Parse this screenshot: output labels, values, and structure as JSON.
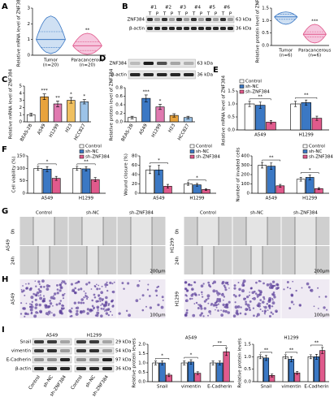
{
  "panel_labels": [
    "A",
    "B",
    "C",
    "D",
    "E",
    "F",
    "G",
    "H",
    "I"
  ],
  "blots": {
    "B": {
      "bands": [
        "ZNF384",
        "β-actin"
      ],
      "kda": [
        "63 kDa",
        "36 kDa"
      ],
      "samples": [
        "#1",
        "#2",
        "#3",
        "#4",
        "#5",
        "#6"
      ],
      "lanes": [
        "T",
        "P",
        "T",
        "P",
        "T",
        "P",
        "T",
        "P",
        "T",
        "P",
        "T",
        "P"
      ]
    },
    "D": {
      "bands": [
        "ZNF384",
        "β-actin"
      ],
      "kda": [
        "63 kDa",
        "36 kDa"
      ]
    },
    "I": {
      "groups": [
        "A549",
        "H1299"
      ],
      "bands": [
        "Snail",
        "vimentin",
        "E-Cadherin",
        "β-actin"
      ],
      "kda": [
        "29 kDa",
        "54 kDa",
        "97 kDa",
        "36 kDa"
      ],
      "lanes": [
        "Control",
        "sh-NC",
        "sh-ZNF384",
        "Control",
        "sh-NC",
        "sh-ZNF384"
      ]
    }
  },
  "images": {
    "columns": [
      "Control",
      "sh-NC",
      "sh-ZNF384"
    ],
    "cell_lines": [
      "A549",
      "H1299"
    ],
    "times": [
      "0h",
      "24h"
    ],
    "scale_bars": [
      "200μm",
      "100μm"
    ]
  },
  "chart_data": [
    {
      "type": "violin",
      "ylabel": "Relative mRNA level of ZNF384",
      "categories": [
        "Tumor",
        "Paracancerous"
      ],
      "n_labels": [
        "(n=20)",
        "(n=20)"
      ],
      "stats": [
        {
          "min": 0.1,
          "q1": 0.5,
          "median": 1.0,
          "q3": 1.5,
          "max": 2.5
        },
        {
          "min": 0.05,
          "q1": 0.3,
          "median": 0.6,
          "q3": 0.85,
          "max": 1.4
        }
      ],
      "colors": [
        "#3b78c4",
        "#e05a8c"
      ],
      "fill_colors": [
        "#cfe0f3",
        "#f6c7de"
      ],
      "annotations": [
        null,
        "**"
      ],
      "ylim": [
        0,
        3
      ],
      "yticks": [
        0,
        1,
        2,
        3
      ]
    },
    {
      "type": "violin",
      "ylabel": "Relative protein level of ZNF384",
      "categories": [
        "Tumor",
        "Paracancerous"
      ],
      "n_labels": [
        "(n=6)",
        "(n=6)"
      ],
      "stats": [
        {
          "min": 0.85,
          "q1": 1.05,
          "median": 1.15,
          "q3": 1.25,
          "max": 1.35
        },
        {
          "min": 0.1,
          "q1": 0.35,
          "median": 0.45,
          "q3": 0.55,
          "max": 0.85
        }
      ],
      "colors": [
        "#3b78c4",
        "#e05a8c"
      ],
      "fill_colors": [
        "#cfe0f3",
        "#f6c7de"
      ],
      "annotations": [
        null,
        "***"
      ],
      "ylim": [
        0,
        1.5
      ],
      "yticks": [
        {
          "value": 0,
          "label": "0.0"
        },
        {
          "value": 0.5,
          "label": "0.5"
        },
        {
          "value": 1,
          "label": "1.0"
        },
        {
          "value": 1.5,
          "label": "1.5"
        }
      ]
    },
    {
      "type": "bar",
      "ylabel": "Relative mRNA level of ZNF384",
      "categories": [
        "BEAS-2B",
        "A549",
        "H1299",
        "H23",
        "HCC827"
      ],
      "values": [
        1,
        3.5,
        2.5,
        3.0,
        2.8
      ],
      "errors": [
        0.2,
        0.4,
        0.4,
        0.4,
        0.3
      ],
      "colors": [
        "#ffffff",
        "#e8a33d",
        "#e07ab0",
        "#f0c060",
        "#9cc3e8"
      ],
      "annotations": [
        null,
        "***",
        "**",
        "*",
        "*"
      ],
      "ylim": [
        0,
        5
      ],
      "yticks": [
        0,
        1,
        2,
        3,
        4,
        5
      ]
    },
    {
      "type": "bar",
      "ylabel": "Relative protein level of ZNF384",
      "categories": [
        "BEAS-2B",
        "A549",
        "H1299",
        "H23",
        "HCC827"
      ],
      "values": [
        0.1,
        0.55,
        0.35,
        0.15,
        0.1
      ],
      "errors": [
        0.03,
        0.08,
        0.06,
        0.04,
        0.03
      ],
      "colors": [
        "#ffffff",
        "#3b78c4",
        "#e07ab0",
        "#e8a33d",
        "#9cc3e8"
      ],
      "annotations": [
        null,
        "***",
        "*",
        null,
        null
      ],
      "ylim": [
        0,
        0.8
      ],
      "yticks": [
        {
          "value": 0,
          "label": "0.0"
        },
        {
          "value": 0.2,
          "label": "0.2"
        },
        {
          "value": 0.4,
          "label": "0.4"
        },
        {
          "value": 0.6,
          "label": "0.6"
        },
        {
          "value": 0.8,
          "label": "0.8"
        }
      ]
    },
    {
      "type": "grouped_bar",
      "ylabel": "Relative mRNA level of ZNF384",
      "categories": [
        "A549",
        "H1299"
      ],
      "legend": "top-left",
      "series": [
        {
          "name": "Control",
          "color": "#ffffff",
          "values": [
            1,
            1
          ],
          "errors": [
            0.1,
            0.1
          ]
        },
        {
          "name": "sh-NC",
          "color": "#3b78c4",
          "values": [
            0.95,
            1.05
          ],
          "errors": [
            0.12,
            0.1
          ]
        },
        {
          "name": "sh-ZNF384",
          "color": "#e05a8c",
          "values": [
            0.3,
            0.45
          ],
          "errors": [
            0.06,
            0.08
          ]
        }
      ],
      "annotations": [
        "**",
        "**"
      ],
      "ylim": [
        0,
        1.5
      ],
      "yticks": [
        {
          "value": 0,
          "label": "0.0"
        },
        {
          "value": 0.5,
          "label": "0.5"
        },
        {
          "value": 1,
          "label": "1.0"
        },
        {
          "value": 1.5,
          "label": "1.5"
        }
      ]
    },
    {
      "type": "grouped_bar",
      "ylabel": "Cell viability (%)",
      "categories": [
        "A549",
        "H1299"
      ],
      "legend": "top-right",
      "series": [
        {
          "name": "Control",
          "color": "#ffffff",
          "values": [
            100,
            100
          ],
          "errors": [
            8,
            8
          ]
        },
        {
          "name": "sh-NC",
          "color": "#3b78c4",
          "values": [
            97,
            98
          ],
          "errors": [
            10,
            9
          ]
        },
        {
          "name": "sh-ZNF384",
          "color": "#e05a8c",
          "values": [
            60,
            55
          ],
          "errors": [
            8,
            8
          ]
        }
      ],
      "annotations": [
        "*",
        "**"
      ],
      "ylim": [
        0,
        150
      ],
      "yticks": [
        0,
        50,
        100,
        150
      ]
    },
    {
      "type": "grouped_bar",
      "ylabel": "Wound closure (%)",
      "categories": [
        "A549",
        "H1299"
      ],
      "legend": "top-right",
      "series": [
        {
          "name": "Control",
          "color": "#ffffff",
          "values": [
            50,
            20
          ],
          "errors": [
            8,
            3
          ]
        },
        {
          "name": "sh-NC",
          "color": "#3b78c4",
          "values": [
            50,
            18
          ],
          "errors": [
            10,
            3
          ]
        },
        {
          "name": "sh-ZNF384",
          "color": "#e05a8c",
          "values": [
            15,
            8
          ],
          "errors": [
            4,
            2
          ]
        }
      ],
      "annotations": [
        "*",
        "*"
      ],
      "ylim": [
        0,
        80
      ],
      "yticks": [
        0,
        20,
        40,
        60,
        80
      ]
    },
    {
      "type": "grouped_bar",
      "ylabel": "Number of invaded cells",
      "categories": [
        "A549",
        "H1299"
      ],
      "legend": "top-right",
      "series": [
        {
          "name": "Control",
          "color": "#ffffff",
          "values": [
            300,
            150
          ],
          "errors": [
            30,
            20
          ]
        },
        {
          "name": "sh-NC",
          "color": "#3b78c4",
          "values": [
            290,
            170
          ],
          "errors": [
            35,
            25
          ]
        },
        {
          "name": "sh-ZNF384",
          "color": "#e05a8c",
          "values": [
            80,
            50
          ],
          "errors": [
            15,
            10
          ]
        }
      ],
      "annotations": [
        "**",
        "*"
      ],
      "ylim": [
        0,
        400
      ],
      "yticks": [
        0,
        100,
        200,
        300,
        400
      ]
    },
    {
      "type": "grouped_bar",
      "title": "A549",
      "ylabel": "Relative protein levels",
      "categories": [
        "Snail",
        "vimentin",
        "E-Cadherin"
      ],
      "series": [
        {
          "name": "Control",
          "color": "#ffffff",
          "values": [
            1,
            1,
            1
          ],
          "errors": [
            0.1,
            0.1,
            0.1
          ]
        },
        {
          "name": "sh-NC",
          "color": "#3b78c4",
          "values": [
            1.0,
            1.05,
            1.0
          ],
          "errors": [
            0.12,
            0.12,
            0.1
          ]
        },
        {
          "name": "sh-ZNF384",
          "color": "#e05a8c",
          "values": [
            0.35,
            0.45,
            1.6
          ],
          "errors": [
            0.08,
            0.08,
            0.2
          ]
        }
      ],
      "annotations": [
        "*",
        "*",
        "**"
      ],
      "ylim": [
        0,
        2
      ],
      "yticks": [
        {
          "value": 0,
          "label": "0.0"
        },
        {
          "value": 0.5,
          "label": "0.5"
        },
        {
          "value": 1,
          "label": "1.0"
        },
        {
          "value": 1.5,
          "label": "1.5"
        },
        {
          "value": 2,
          "label": "2.0"
        }
      ]
    },
    {
      "type": "grouped_bar",
      "title": "H1299",
      "ylabel": "Relative protein levels",
      "categories": [
        "Snail",
        "vimentin",
        "E-Cadherin"
      ],
      "series": [
        {
          "name": "Control",
          "color": "#ffffff",
          "values": [
            1,
            1,
            1
          ],
          "errors": [
            0.08,
            0.08,
            0.08
          ]
        },
        {
          "name": "sh-NC",
          "color": "#3b78c4",
          "values": [
            0.95,
            0.9,
            1.0
          ],
          "errors": [
            0.1,
            0.1,
            0.1
          ]
        },
        {
          "name": "sh-ZNF384",
          "color": "#e05a8c",
          "values": [
            0.25,
            0.35,
            1.25
          ],
          "errors": [
            0.06,
            0.06,
            0.12
          ]
        }
      ],
      "annotations": [
        "**",
        "**",
        "**"
      ],
      "ylim": [
        0,
        1.5
      ],
      "yticks": [
        {
          "value": 0,
          "label": "0.0"
        },
        {
          "value": 0.5,
          "label": "0.5"
        },
        {
          "value": 1,
          "label": "1.0"
        },
        {
          "value": 1.5,
          "label": "1.5"
        }
      ]
    }
  ]
}
